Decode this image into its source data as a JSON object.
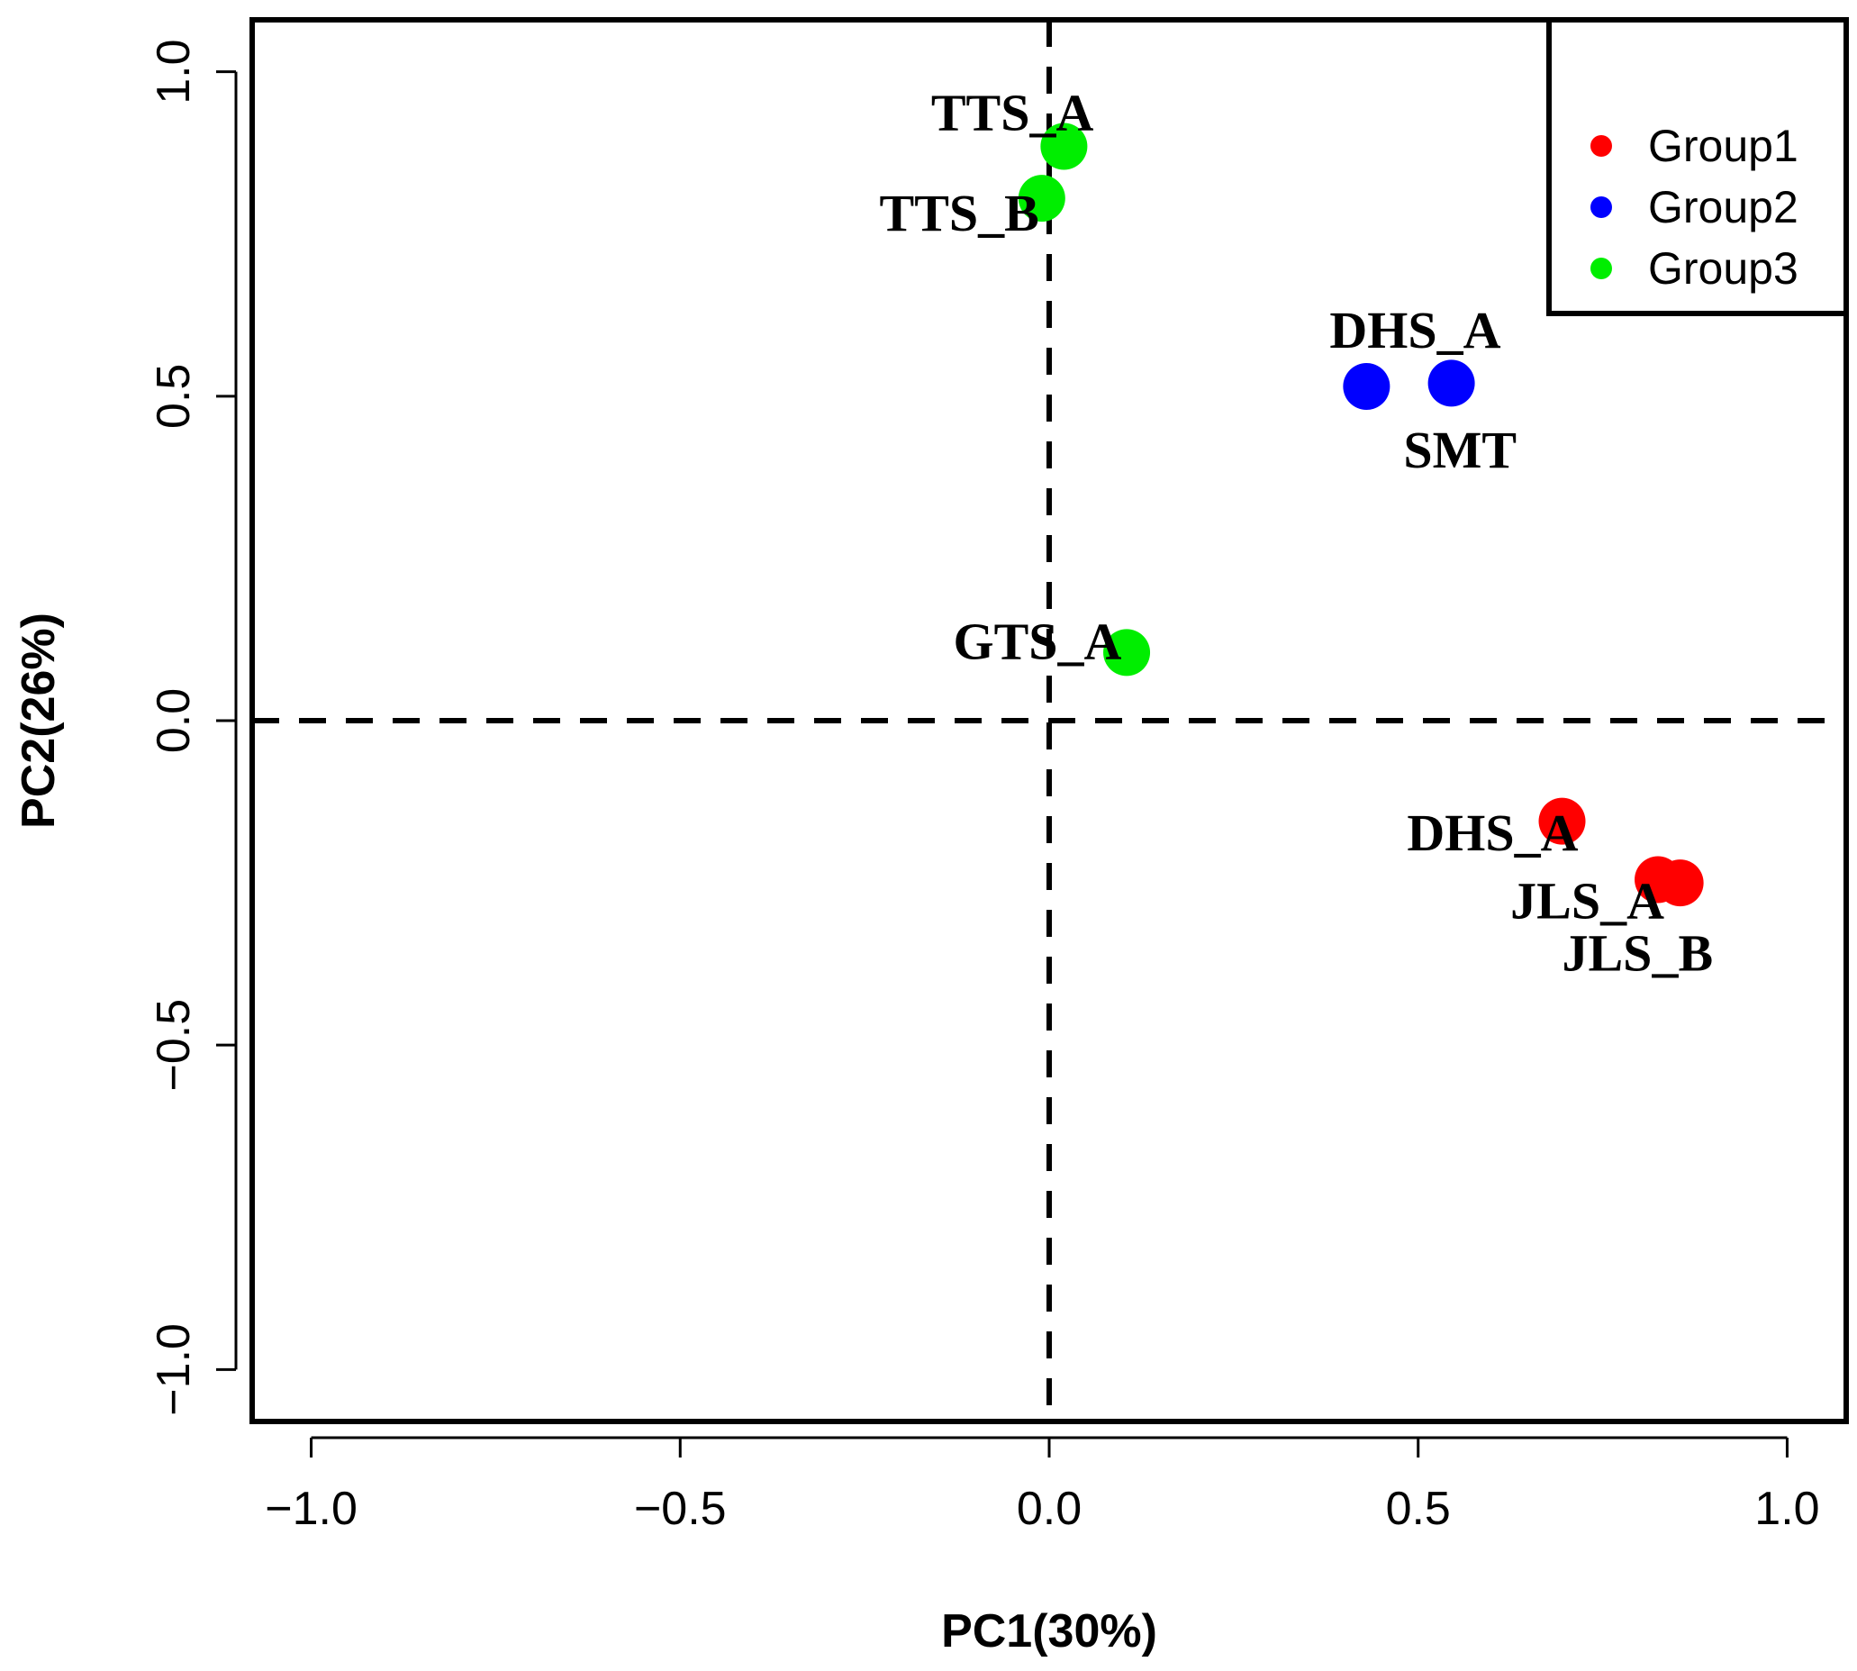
{
  "chart_data": {
    "type": "scatter",
    "title": "",
    "xlabel": "PC1(30%)",
    "ylabel": "PC2(26%)",
    "xlim": [
      -1.08,
      1.08
    ],
    "ylim": [
      -1.08,
      1.08
    ],
    "xticks": [
      -1.0,
      -0.5,
      0.0,
      0.5,
      1.0
    ],
    "yticks": [
      -1.0,
      -0.5,
      0.0,
      0.5,
      1.0
    ],
    "xtick_labels": [
      "−1.0",
      "−0.5",
      "0.0",
      "0.5",
      "1.0"
    ],
    "ytick_labels": [
      "−1.0",
      "−0.5",
      "0.0",
      "0.5",
      "1.0"
    ],
    "reference_lines": {
      "x": 0,
      "y": 0,
      "style": "dashed"
    },
    "grid": false,
    "legend_position": "top-right",
    "series": [
      {
        "name": "Group1",
        "color": "#ff0000",
        "points": [
          {
            "x": 0.695,
            "y": -0.155
          },
          {
            "x": 0.825,
            "y": -0.245
          },
          {
            "x": 0.855,
            "y": -0.25
          }
        ]
      },
      {
        "name": "Group2",
        "color": "#0000ff",
        "points": [
          {
            "x": 0.43,
            "y": 0.515
          },
          {
            "x": 0.545,
            "y": 0.52
          }
        ]
      },
      {
        "name": "Group3",
        "color": "#00ee00",
        "points": [
          {
            "x": 0.02,
            "y": 0.885
          },
          {
            "x": -0.01,
            "y": 0.805
          },
          {
            "x": 0.105,
            "y": 0.105
          }
        ]
      }
    ],
    "annotations": [
      {
        "text": "TTS_A",
        "x": -0.16,
        "y": 0.91
      },
      {
        "text": "TTS_B",
        "x": -0.23,
        "y": 0.755
      },
      {
        "text": "DHS_A",
        "x": 0.38,
        "y": 0.575
      },
      {
        "text": "SMT",
        "x": 0.48,
        "y": 0.39
      },
      {
        "text": "GTS_A",
        "x": -0.13,
        "y": 0.095
      },
      {
        "text": "DHS_A",
        "x": 0.485,
        "y": -0.2
      },
      {
        "text": "JLS_A",
        "x": 0.625,
        "y": -0.305
      },
      {
        "text": "JLS_B",
        "x": 0.695,
        "y": -0.385
      }
    ]
  }
}
